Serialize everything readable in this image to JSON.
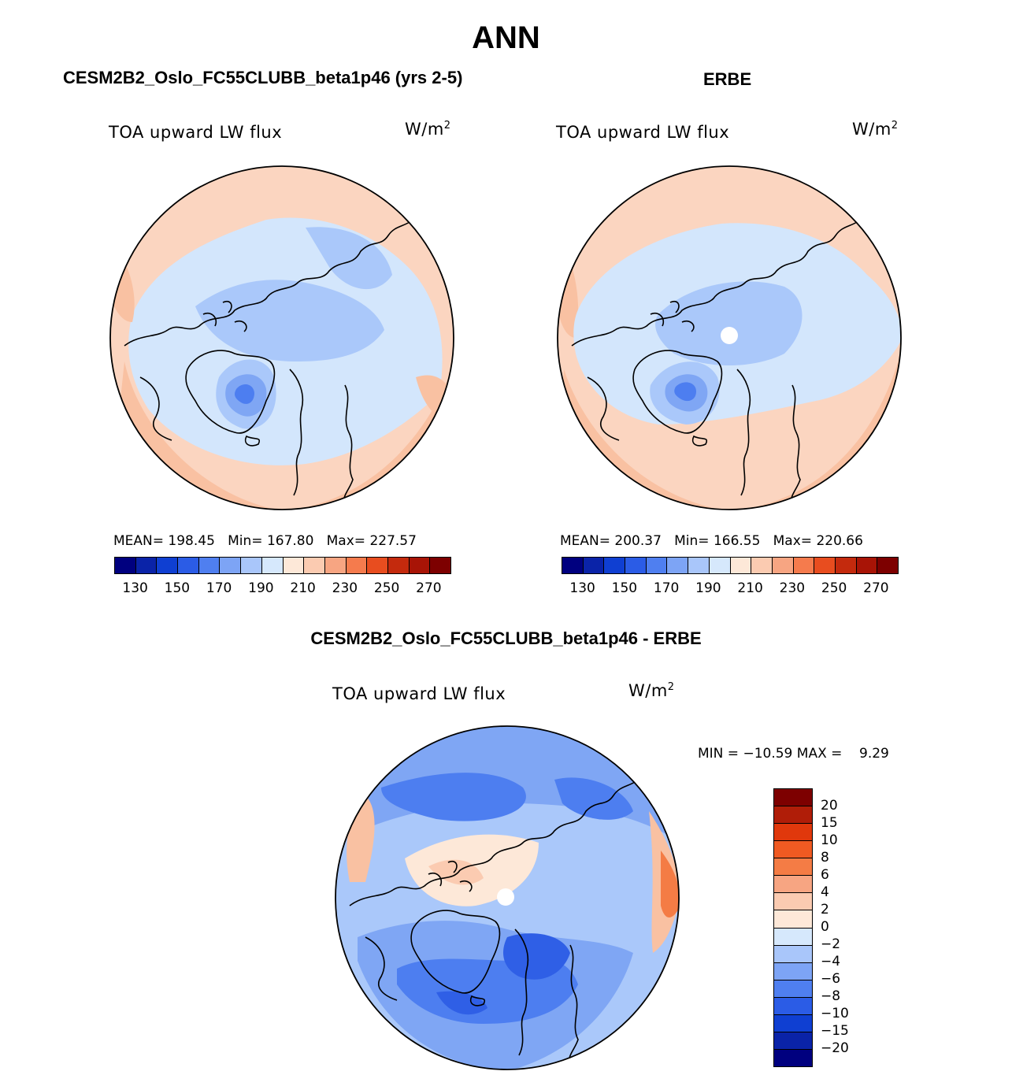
{
  "main_title": "ANN",
  "units_base": "W/m",
  "units_sup": "2",
  "panels": [
    {
      "title": "CESM2B2_Oslo_FC55CLUBB_beta1p46 (yrs 2-5)",
      "variable": "TOA upward LW flux",
      "stats": {
        "mean_label": "MEAN=",
        "mean": "198.45",
        "min_label": "Min=",
        "min": "167.80",
        "max_label": "Max=",
        "max": "227.57"
      }
    },
    {
      "title": "ERBE",
      "variable": "TOA upward LW flux",
      "stats": {
        "mean_label": "MEAN=",
        "mean": "200.37",
        "min_label": "Min=",
        "min": "166.55",
        "max_label": "Max=",
        "max": "220.66"
      }
    }
  ],
  "diff_panel": {
    "title": "CESM2B2_Oslo_FC55CLUBB_beta1p46 - ERBE",
    "variable": "TOA upward LW flux",
    "min_label": "MIN =",
    "min": "−10.59",
    "max_label": "MAX =",
    "max": "9.29"
  },
  "abs_colorbar": {
    "colors": [
      "#00007f",
      "#0a23a8",
      "#0f3fd2",
      "#2b5ce6",
      "#4f7ff0",
      "#7da4f5",
      "#a9c6fa",
      "#d6e8fc",
      "#fde8d8",
      "#fbcbb1",
      "#f7a582",
      "#f57b4d",
      "#e84d1f",
      "#c42a0d",
      "#a81406",
      "#7d0000"
    ],
    "labels": [
      "130",
      "150",
      "170",
      "190",
      "210",
      "230",
      "250",
      "270"
    ]
  },
  "diff_colorbar": {
    "colors": [
      "#7d0000",
      "#b01d08",
      "#e0380c",
      "#f05a22",
      "#f47c45",
      "#f7a582",
      "#fbcbb1",
      "#fde8d8",
      "#d6e8fc",
      "#a9c6fa",
      "#7da4f5",
      "#4f7ff0",
      "#2b5ce6",
      "#0f3fd2",
      "#0a23a8",
      "#00007f"
    ],
    "labels": [
      "20",
      "15",
      "10",
      "8",
      "6",
      "4",
      "2",
      "0",
      "−2",
      "−4",
      "−6",
      "−8",
      "−10",
      "−15",
      "−20"
    ]
  },
  "map_colors": {
    "outer_warm": "#fbd5c0",
    "warm_band": "#f9c1a2",
    "warm_strong": "#f3a07e",
    "light_blue": "#d3e6fc",
    "mid_blue": "#aac8fa",
    "blue": "#7fa6f4",
    "deep_blue": "#4d7ef0",
    "darker_blue": "#2f5fe6",
    "neutral": "#fde8d8"
  }
}
